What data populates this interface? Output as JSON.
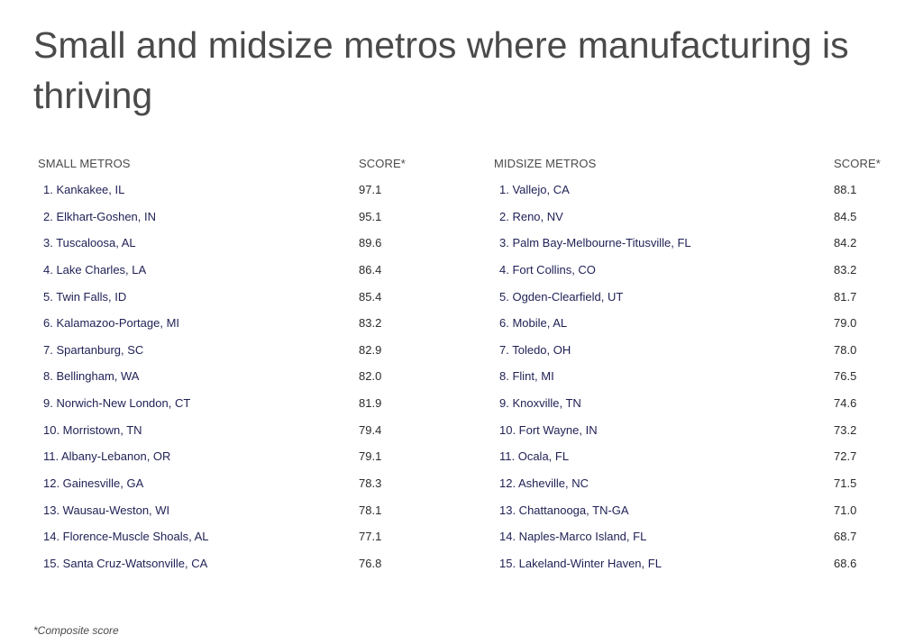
{
  "title": "Small and midsize metros where manufacturing is thriving",
  "small": {
    "header_name": "SMALL METROS",
    "header_score": "SCORE*",
    "rows": [
      {
        "label": "1. Kankakee, IL",
        "score": "97.1"
      },
      {
        "label": "2. Elkhart-Goshen, IN",
        "score": "95.1"
      },
      {
        "label": "3. Tuscaloosa, AL",
        "score": "89.6"
      },
      {
        "label": "4. Lake Charles, LA",
        "score": "86.4"
      },
      {
        "label": "5. Twin Falls, ID",
        "score": "85.4"
      },
      {
        "label": "6. Kalamazoo-Portage, MI",
        "score": "83.2"
      },
      {
        "label": "7. Spartanburg, SC",
        "score": "82.9"
      },
      {
        "label": "8. Bellingham, WA",
        "score": "82.0"
      },
      {
        "label": "9. Norwich-New London, CT",
        "score": "81.9"
      },
      {
        "label": "10. Morristown, TN",
        "score": "79.4"
      },
      {
        "label": "11. Albany-Lebanon, OR",
        "score": "79.1"
      },
      {
        "label": "12. Gainesville, GA",
        "score": "78.3"
      },
      {
        "label": "13. Wausau-Weston, WI",
        "score": "78.1"
      },
      {
        "label": "14. Florence-Muscle Shoals, AL",
        "score": "77.1"
      },
      {
        "label": "15. Santa Cruz-Watsonville, CA",
        "score": "76.8"
      }
    ]
  },
  "midsize": {
    "header_name": "MIDSIZE METROS",
    "header_score": "SCORE*",
    "rows": [
      {
        "label": "1. Vallejo, CA",
        "score": "88.1"
      },
      {
        "label": "2. Reno, NV",
        "score": "84.5"
      },
      {
        "label": "3. Palm Bay-Melbourne-Titusville, FL",
        "score": "84.2"
      },
      {
        "label": "4. Fort Collins, CO",
        "score": "83.2"
      },
      {
        "label": "5. Ogden-Clearfield, UT",
        "score": "81.7"
      },
      {
        "label": "6. Mobile, AL",
        "score": "79.0"
      },
      {
        "label": "7. Toledo, OH",
        "score": "78.0"
      },
      {
        "label": "8. Flint, MI",
        "score": "76.5"
      },
      {
        "label": "9. Knoxville, TN",
        "score": "74.6"
      },
      {
        "label": "10. Fort Wayne, IN",
        "score": "73.2"
      },
      {
        "label": "11. Ocala, FL",
        "score": "72.7"
      },
      {
        "label": "12. Asheville, NC",
        "score": "71.5"
      },
      {
        "label": "13. Chattanooga, TN-GA",
        "score": "71.0"
      },
      {
        "label": "14. Naples-Marco Island, FL",
        "score": "68.7"
      },
      {
        "label": "15. Lakeland-Winter Haven, FL",
        "score": "68.6"
      }
    ]
  },
  "footnote": "*Composite score"
}
